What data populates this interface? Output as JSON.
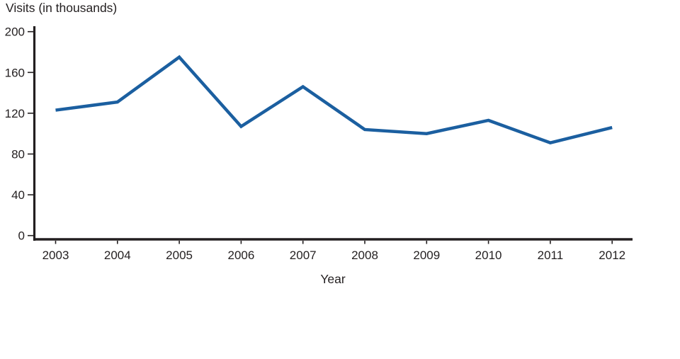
{
  "chart_data": {
    "type": "line",
    "title": "",
    "ylabel": "Visits (in thousands)",
    "xlabel": "Year",
    "x": [
      "2003",
      "2004",
      "2005",
      "2006",
      "2007",
      "2008",
      "2009",
      "2010",
      "2011",
      "2012"
    ],
    "series": [
      {
        "name": "Visits",
        "values": [
          123,
          131,
          175,
          107,
          146,
          104,
          100,
          113,
          91,
          106
        ]
      }
    ],
    "ylim": [
      0,
      200
    ],
    "yticks": [
      0,
      40,
      80,
      120,
      160,
      200
    ],
    "grid": false,
    "legend": "none",
    "ylabel_position": "top-left",
    "line_color": "#1b5fa0",
    "axis_color": "#231f20",
    "background": "#ffffff"
  }
}
